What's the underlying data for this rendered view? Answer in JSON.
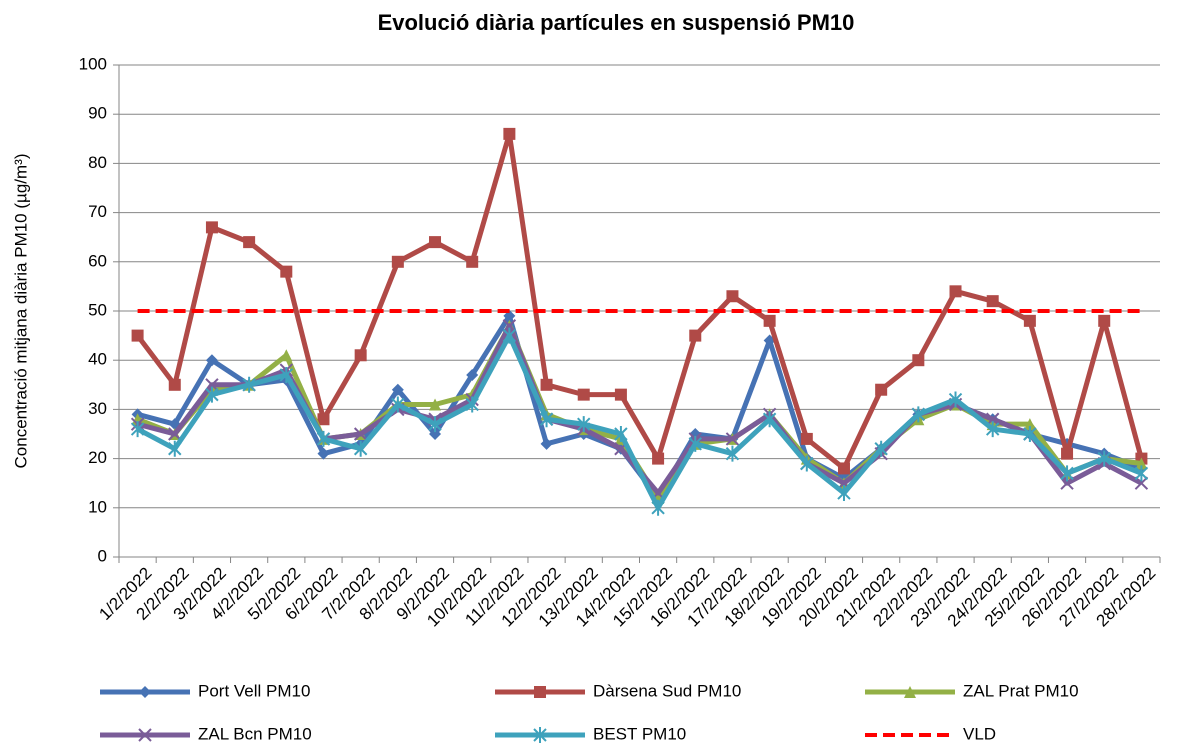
{
  "chart_data": {
    "type": "line",
    "title": "Evolució diària partícules en suspensió PM10",
    "y_label": "Concentració mitjana diària PM10 (µg/m³)",
    "categories": [
      "1/2/2022",
      "2/2/2022",
      "3/2/2022",
      "4/2/2022",
      "5/2/2022",
      "6/2/2022",
      "7/2/2022",
      "8/2/2022",
      "9/2/2022",
      "10/2/2022",
      "11/2/2022",
      "12/2/2022",
      "13/2/2022",
      "14/2/2022",
      "15/2/2022",
      "16/2/2022",
      "17/2/2022",
      "18/2/2022",
      "19/2/2022",
      "20/2/2022",
      "21/2/2022",
      "22/2/2022",
      "23/2/2022",
      "24/2/2022",
      "25/2/2022",
      "26/2/2022",
      "27/2/2022",
      "28/2/2022"
    ],
    "series": [
      {
        "name": "Port Vell PM10",
        "color": "#4672b4",
        "marker": "diamond",
        "values": [
          29,
          27,
          40,
          35,
          36,
          21,
          23,
          34,
          25,
          37,
          49,
          23,
          25,
          22,
          12,
          25,
          24,
          44,
          20,
          16,
          22,
          29,
          31,
          28,
          25,
          23,
          21,
          18
        ]
      },
      {
        "name": "Dàrsena Sud PM10",
        "color": "#b04a47",
        "marker": "square",
        "values": [
          45,
          35,
          67,
          64,
          58,
          28,
          41,
          60,
          64,
          60,
          86,
          35,
          33,
          33,
          20,
          45,
          53,
          48,
          24,
          18,
          34,
          40,
          54,
          52,
          48,
          21,
          48,
          20
        ]
      },
      {
        "name": "ZAL Prat PM10",
        "color": "#93b046",
        "marker": "triangle",
        "values": [
          28,
          25,
          34,
          35,
          41,
          24,
          25,
          31,
          31,
          33,
          47,
          29,
          26,
          24,
          12,
          23,
          24,
          29,
          20,
          15,
          22,
          28,
          31,
          27,
          27,
          17,
          20,
          19
        ]
      },
      {
        "name": "ZAL Bcn PM10",
        "color": "#7a5c98",
        "marker": "x",
        "values": [
          27,
          25,
          35,
          35,
          38,
          24,
          25,
          30,
          28,
          32,
          47,
          28,
          26,
          22,
          13,
          24,
          24,
          29,
          19,
          15,
          21,
          29,
          31,
          28,
          25,
          15,
          19,
          15
        ]
      },
      {
        "name": "BEST PM10",
        "color": "#3ea2bc",
        "marker": "star",
        "values": [
          26,
          22,
          33,
          35,
          37,
          24,
          22,
          31,
          27,
          31,
          45,
          28,
          27,
          25,
          10,
          23,
          21,
          28,
          19,
          13,
          22,
          29,
          32,
          26,
          25,
          17,
          20,
          17
        ]
      },
      {
        "name": "VLD",
        "color": "#ff0000",
        "marker": "none",
        "dashed": true,
        "values": [
          50,
          50,
          50,
          50,
          50,
          50,
          50,
          50,
          50,
          50,
          50,
          50,
          50,
          50,
          50,
          50,
          50,
          50,
          50,
          50,
          50,
          50,
          50,
          50,
          50,
          50,
          50,
          50
        ]
      }
    ],
    "ylim": [
      0,
      100
    ],
    "yticks": [
      0,
      10,
      20,
      30,
      40,
      50,
      60,
      70,
      80,
      90,
      100
    ],
    "grid": true
  }
}
